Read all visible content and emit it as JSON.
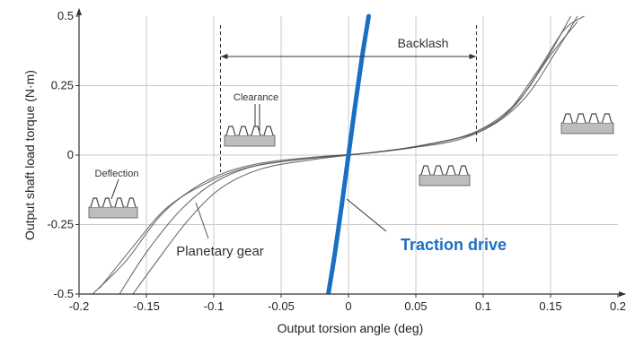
{
  "chart_data": {
    "type": "line",
    "title": "",
    "xlabel": "Output torsion angle (deg)",
    "ylabel": "Output shaft load torque (N·m)",
    "xlim": [
      -0.2,
      0.2
    ],
    "ylim": [
      -0.5,
      0.5
    ],
    "grid": true,
    "x_ticks": [
      -0.2,
      -0.15,
      -0.1,
      -0.05,
      0,
      0.05,
      0.1,
      0.15,
      0.2
    ],
    "x_tick_labels": [
      "-0.2",
      "-0.15",
      "-0.1",
      "-0.05",
      "0",
      "0.05",
      "0.1",
      "0.15",
      "0.2"
    ],
    "y_ticks": [
      -0.5,
      -0.25,
      0,
      0.25,
      0.5
    ],
    "y_tick_labels": [
      "-0.5",
      "-0.25",
      "0",
      "0.25",
      "0.5"
    ],
    "series": [
      {
        "name": "Traction drive",
        "color": "#1a6fc4",
        "points": [
          [
            -0.015,
            -0.5
          ],
          [
            -0.01,
            -0.35
          ],
          [
            -0.005,
            -0.18
          ],
          [
            0.0,
            0.0
          ],
          [
            0.005,
            0.18
          ],
          [
            0.01,
            0.35
          ],
          [
            0.015,
            0.5
          ]
        ]
      },
      {
        "name": "Planetary gear",
        "color": "#555555",
        "loops": [
          [
            [
              -0.19,
              -0.5
            ],
            [
              -0.165,
              -0.38
            ],
            [
              -0.14,
              -0.22
            ],
            [
              -0.115,
              -0.12
            ],
            [
              -0.09,
              -0.06
            ],
            [
              -0.06,
              -0.025
            ],
            [
              -0.02,
              -0.005
            ],
            [
              0.02,
              0.01
            ],
            [
              0.06,
              0.04
            ],
            [
              0.1,
              0.09
            ],
            [
              0.13,
              0.2
            ],
            [
              0.155,
              0.38
            ],
            [
              0.17,
              0.5
            ]
          ],
          [
            [
              -0.17,
              -0.5
            ],
            [
              -0.15,
              -0.35
            ],
            [
              -0.125,
              -0.2
            ],
            [
              -0.1,
              -0.1
            ],
            [
              -0.07,
              -0.04
            ],
            [
              -0.03,
              -0.012
            ],
            [
              0.01,
              0.005
            ],
            [
              0.05,
              0.03
            ],
            [
              0.09,
              0.075
            ],
            [
              0.12,
              0.16
            ],
            [
              0.145,
              0.33
            ],
            [
              0.165,
              0.5
            ]
          ],
          [
            [
              -0.185,
              -0.48
            ],
            [
              -0.16,
              -0.33
            ],
            [
              -0.135,
              -0.19
            ],
            [
              -0.105,
              -0.1
            ],
            [
              -0.075,
              -0.045
            ],
            [
              -0.035,
              -0.015
            ],
            [
              0.005,
              0.003
            ],
            [
              0.045,
              0.025
            ],
            [
              0.085,
              0.06
            ],
            [
              0.115,
              0.14
            ],
            [
              0.14,
              0.3
            ],
            [
              0.16,
              0.45
            ],
            [
              0.175,
              0.5
            ]
          ],
          [
            [
              -0.16,
              -0.5
            ],
            [
              -0.145,
              -0.4
            ],
            [
              -0.12,
              -0.24
            ],
            [
              -0.095,
              -0.12
            ],
            [
              -0.065,
              -0.05
            ],
            [
              -0.025,
              -0.015
            ],
            [
              0.015,
              0.008
            ],
            [
              0.055,
              0.035
            ],
            [
              0.095,
              0.085
            ],
            [
              0.125,
              0.19
            ],
            [
              0.15,
              0.36
            ],
            [
              0.17,
              0.48
            ]
          ]
        ]
      }
    ],
    "annotations": {
      "backlash": "Backlash",
      "clearance": "Clearance",
      "deflection": "Deflection",
      "planetary_gear": "Planetary gear",
      "traction_drive": "Traction drive"
    },
    "backlash_range": [
      -0.095,
      0.095
    ]
  }
}
